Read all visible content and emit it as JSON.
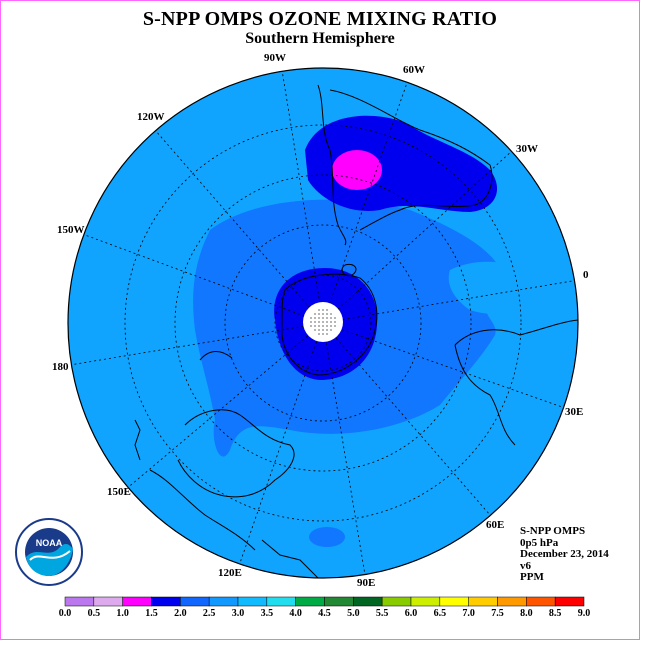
{
  "title": "S-NPP OMPS OZONE MIXING RATIO",
  "subtitle": "Southern Hemisphere",
  "longitude_labels": [
    {
      "text": "90W"
    },
    {
      "text": "60W"
    },
    {
      "text": "30W"
    },
    {
      "text": "0"
    },
    {
      "text": "30E"
    },
    {
      "text": "60E"
    },
    {
      "text": "90E"
    },
    {
      "text": "120E"
    },
    {
      "text": "150E"
    },
    {
      "text": "180"
    },
    {
      "text": "150W"
    },
    {
      "text": "120W"
    }
  ],
  "info": {
    "instrument": "S-NPP OMPS",
    "level": "0p5 hPa",
    "date": "December 23, 2014",
    "version": "v6",
    "units": "PPM"
  },
  "logo": {
    "text": "NOAA",
    "ring_text": "NATIONAL OCEANIC AND ATMOSPHERIC ADMINISTRATION · U.S. DEPARTMENT OF COMMERCE"
  },
  "colorbar": {
    "ticks": [
      "0.0",
      "0.5",
      "1.0",
      "1.5",
      "2.0",
      "2.5",
      "3.0",
      "3.5",
      "4.0",
      "4.5",
      "5.0",
      "5.5",
      "6.0",
      "6.5",
      "7.0",
      "7.5",
      "8.0",
      "8.5",
      "9.0"
    ],
    "colors": [
      "#bb77ee",
      "#ddaaee",
      "#ff00ff",
      "#0000ee",
      "#1166ff",
      "#1199ff",
      "#11bbff",
      "#22ddee",
      "#00aa44",
      "#228833",
      "#006622",
      "#88cc00",
      "#ccee00",
      "#ffff00",
      "#ffcc00",
      "#ff9900",
      "#ff5500",
      "#ff0000",
      "#885533"
    ]
  },
  "map": {
    "background_color": "#11a4ff",
    "mid_band_color": "#1177ff",
    "high_color": "#0000ee",
    "peak_color": "#ff00ff",
    "pole_color": "#ffffff"
  }
}
